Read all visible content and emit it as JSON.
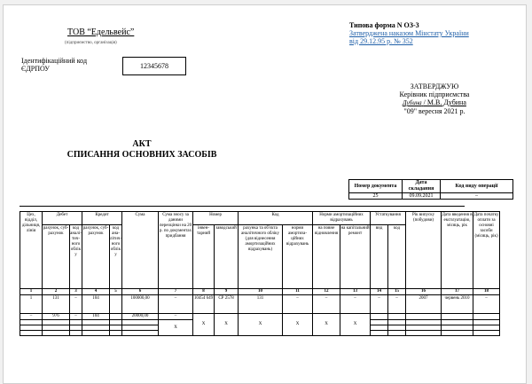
{
  "header": {
    "organization": "ТОВ “Едельвейс”",
    "organization_caption": "(підприємство, організація)",
    "id_code_label": "Ідентифікаційний код ЄДРПОУ",
    "id_code_value": "12345678",
    "form_name": "Типова форма N ОЗ-3",
    "form_approval_line1": "Затверджена наказом Мінстату України",
    "form_approval_line2": "від 29.12.95 р. № 352"
  },
  "approval": {
    "title": "ЗАТВЕРДЖУЮ",
    "position": "Керівник підприємства",
    "signature": "Дубина",
    "name": "/ М.В. Дубина",
    "date": "\"09\" вересня 2021 р."
  },
  "doc_title": {
    "line1": "АКТ",
    "line2": "СПИСАННЯ ОСНОВНИХ ЗАСОБІВ"
  },
  "doc_info": {
    "headers": [
      "Номер документа",
      "Дата складання",
      "Код виду операції"
    ],
    "values": [
      "25",
      "09.09.2021",
      "–"
    ]
  },
  "table": {
    "h_dept": "Цех, відділ, діль­ниця, лінія",
    "h_debit": "Дебет",
    "h_credit": "Кредит",
    "h_sum": "Сума",
    "h_revalued": "Сума зносу за даними переоцінки на 20 р. по документах придбання",
    "h_number": "Номер",
    "h_code": "Код",
    "h_norms": "Норми амортизаційних відрахувань",
    "h_equipment": "Устатку­вання",
    "h_year": "Рік випуску (побудо­ви)",
    "h_commission": "Дата введення в експлуа­тацію, місяць, рік",
    "h_payment": "Дата початку оплати за основні засоби (місяць, рік)",
    "s_debit_account": "рахунок, суб­рахунок",
    "s_debit_code": "код ана­лі­тич­ного обліку",
    "s_credit_account": "рахунок, суб­рахунок",
    "s_credit_code": "код ана­літич­ного обліку",
    "s_inventory": "інвен­тарний",
    "s_factory": "завод­ський",
    "s_account_code": "рахунка та об'єкта аналітичного обліку (для віднесення амортизаційних відрахувань)",
    "s_norm_code": "норми амортиза­ційних відраху­вань",
    "s_full": "на повне віднов­лення",
    "s_repair": "на капіталь­ний ремонт",
    "s_from": "вид",
    "s_code": "код",
    "column_numbers": [
      "1",
      "2",
      "3",
      "4",
      "5",
      "6",
      "7",
      "8",
      "9",
      "10",
      "11",
      "12",
      "13",
      "14",
      "15",
      "16",
      "17",
      "18"
    ],
    "row1": [
      "1",
      "131",
      "–",
      "104",
      "",
      "100000,00",
      "–",
      "10454 649",
      "СР 2578",
      "131",
      "–",
      "–",
      "–",
      "–",
      "–",
      "2007",
      "червень 2010",
      "–"
    ],
    "row2": [
      "–",
      "976",
      "–",
      "104",
      "",
      "20000,00",
      "–"
    ],
    "x_mark": "X"
  }
}
